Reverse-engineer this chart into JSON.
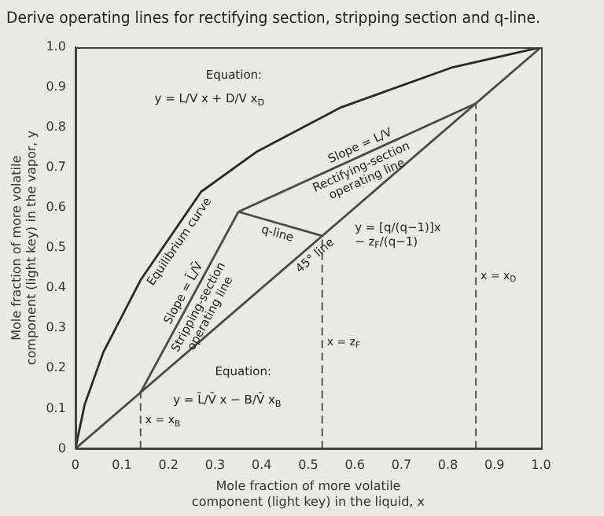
{
  "chart_data": {
    "type": "line",
    "title": "Derive operating lines for rectifying section, stripping section and q-line.",
    "xlabel": "Mole fraction of more volatile component (light key) in the liquid, x",
    "ylabel": "Mole fraction of more volatile component (light key) in the vapor, y",
    "series": [
      {
        "name": "Equilibrium curve",
        "color": "#2a2a2a",
        "x": [
          0,
          0.02,
          0.06,
          0.14,
          0.27,
          0.39,
          0.57,
          0.81,
          1.0
        ],
        "values": [
          0,
          0.11,
          0.24,
          0.42,
          0.64,
          0.74,
          0.85,
          0.95,
          1.0
        ]
      },
      {
        "name": "45° line",
        "color": "#4a4a4a",
        "x": [
          0,
          1.0
        ],
        "values": [
          0,
          1.0
        ]
      },
      {
        "name": "Rectifying-section operating line",
        "color": "#4a4a4a",
        "x": [
          0.35,
          0.86
        ],
        "values": [
          0.59,
          0.86
        ]
      },
      {
        "name": "Stripping-section operating line",
        "color": "#4a4a4a",
        "x": [
          0.14,
          0.35
        ],
        "values": [
          0.14,
          0.59
        ]
      },
      {
        "name": "q-line",
        "color": "#4a4a4a",
        "x": [
          0.53,
          0.35
        ],
        "values": [
          0.53,
          0.59
        ]
      }
    ],
    "xlim": [
      0,
      1.0
    ],
    "ylim": [
      0,
      1.0
    ],
    "xticks": [
      0,
      0.1,
      0.2,
      0.3,
      0.4,
      0.5,
      0.6,
      0.7,
      0.8,
      0.9,
      {
        "value": 1.0,
        "label": "1.0"
      }
    ],
    "yticks": [
      0,
      0.1,
      0.2,
      0.3,
      0.4,
      0.5,
      0.6,
      0.7,
      0.8,
      0.9,
      {
        "value": 1.0,
        "label": "1.0"
      }
    ],
    "ref_lines": [
      {
        "axis": "x",
        "value": 0.14,
        "label": "x = x$_{B}$",
        "color": "#555555",
        "line_style": "dashed"
      },
      {
        "axis": "x",
        "value": 0.53,
        "label": "x = z$_{F}$",
        "color": "#555555",
        "line_style": "dashed"
      },
      {
        "axis": "x",
        "value": 0.86,
        "label": "x = x$_{D}$",
        "color": "#555555",
        "line_style": "dashed"
      }
    ],
    "annotations": [
      "Equation:",
      "y = L/V x + D/V x$_{D}$",
      {
        "text": "Slope = L/V",
        "x": 0.62,
        "y": 0.733
      },
      {
        "text": "Slope = L̄/V̄",
        "x": 0.25,
        "y": 0.376
      },
      "y = [q/(q−1)]x − z$_{F}$/(q−1)",
      "Equation:",
      "y = L̄/V̄ x − B/V̄ x$_{B}$"
    ],
    "grid": false,
    "legend": false,
    "marker": "none",
    "line_style": "solid"
  }
}
